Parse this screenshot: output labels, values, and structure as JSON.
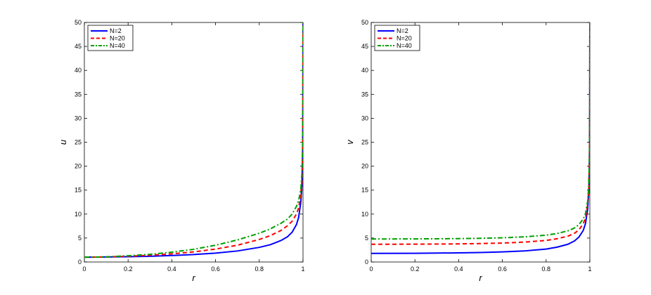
{
  "chart_data": [
    {
      "type": "line",
      "title": "",
      "xlabel": "r",
      "ylabel": "u",
      "xlim": [
        0,
        1
      ],
      "ylim": [
        0,
        50
      ],
      "xticks": [
        "0",
        "0.2",
        "0.4",
        "0.6",
        "0.8",
        "1"
      ],
      "yticks": [
        "0",
        "5",
        "10",
        "15",
        "20",
        "25",
        "30",
        "35",
        "40",
        "45",
        "50"
      ],
      "grid": false,
      "legend_position": "top-left",
      "series": [
        {
          "name": "N=2",
          "color": "#0000ff",
          "style": "solid",
          "x": [
            0,
            0.1,
            0.2,
            0.3,
            0.4,
            0.5,
            0.6,
            0.7,
            0.8,
            0.85,
            0.9,
            0.93,
            0.95,
            0.97,
            0.98,
            0.99,
            0.995,
            0.998,
            0.9995,
            1
          ],
          "y": [
            1,
            1.04,
            1.1,
            1.2,
            1.35,
            1.55,
            1.85,
            2.3,
            3.05,
            3.6,
            4.5,
            5.3,
            6.2,
            7.8,
            9.3,
            12.5,
            16,
            22,
            33,
            50
          ]
        },
        {
          "name": "N=20",
          "color": "#ff0000",
          "style": "dashed",
          "x": [
            0,
            0.1,
            0.2,
            0.3,
            0.4,
            0.5,
            0.6,
            0.7,
            0.8,
            0.85,
            0.9,
            0.93,
            0.95,
            0.97,
            0.98,
            0.99,
            0.995,
            0.998,
            0.9995,
            1
          ],
          "y": [
            1,
            1.05,
            1.2,
            1.4,
            1.7,
            2.1,
            2.7,
            3.5,
            4.7,
            5.5,
            6.6,
            7.6,
            8.5,
            10,
            11.3,
            13.8,
            17,
            23,
            34,
            50
          ]
        },
        {
          "name": "N=40",
          "color": "#00a000",
          "style": "dashdot",
          "x": [
            0,
            0.1,
            0.2,
            0.3,
            0.4,
            0.5,
            0.6,
            0.7,
            0.8,
            0.85,
            0.9,
            0.93,
            0.95,
            0.97,
            0.98,
            0.99,
            0.995,
            0.998,
            0.9995,
            1
          ],
          "y": [
            1,
            1.07,
            1.3,
            1.6,
            2.05,
            2.65,
            3.5,
            4.6,
            6,
            6.9,
            8.1,
            9,
            10,
            11.6,
            12.8,
            15.2,
            18.5,
            24,
            35,
            50
          ]
        }
      ]
    },
    {
      "type": "line",
      "title": "",
      "xlabel": "r",
      "ylabel": "v",
      "xlim": [
        0,
        1
      ],
      "ylim": [
        0,
        50
      ],
      "xticks": [
        "0",
        "0.2",
        "0.4",
        "0.6",
        "0.8",
        "1"
      ],
      "yticks": [
        "0",
        "5",
        "10",
        "15",
        "20",
        "25",
        "30",
        "35",
        "40",
        "45",
        "50"
      ],
      "grid": false,
      "legend_position": "top-left",
      "series": [
        {
          "name": "N=2",
          "color": "#0000ff",
          "style": "solid",
          "x": [
            0,
            0.2,
            0.4,
            0.5,
            0.6,
            0.7,
            0.8,
            0.85,
            0.9,
            0.93,
            0.95,
            0.97,
            0.98,
            0.99,
            0.995,
            0.998,
            0.9995,
            1
          ],
          "y": [
            1.8,
            1.82,
            1.9,
            1.98,
            2.1,
            2.3,
            2.7,
            3.1,
            3.7,
            4.4,
            5.2,
            6.6,
            8,
            11,
            14.5,
            21,
            32,
            50
          ]
        },
        {
          "name": "N=20",
          "color": "#ff0000",
          "style": "dashed",
          "x": [
            0,
            0.2,
            0.4,
            0.5,
            0.6,
            0.7,
            0.8,
            0.85,
            0.9,
            0.93,
            0.95,
            0.97,
            0.98,
            0.99,
            0.995,
            0.998,
            0.9995,
            1
          ],
          "y": [
            3.7,
            3.72,
            3.78,
            3.85,
            3.95,
            4.15,
            4.5,
            4.85,
            5.4,
            6,
            6.7,
            8,
            9.2,
            12,
            15.3,
            21.5,
            32.5,
            50
          ]
        },
        {
          "name": "N=40",
          "color": "#00a000",
          "style": "dashdot",
          "x": [
            0,
            0.2,
            0.4,
            0.5,
            0.6,
            0.7,
            0.8,
            0.85,
            0.9,
            0.93,
            0.95,
            0.97,
            0.98,
            0.99,
            0.995,
            0.998,
            0.9995,
            1
          ],
          "y": [
            4.8,
            4.82,
            4.88,
            4.95,
            5.05,
            5.25,
            5.6,
            5.95,
            6.5,
            7.1,
            7.8,
            9,
            10.1,
            12.7,
            15.8,
            22,
            33,
            50
          ]
        }
      ]
    }
  ]
}
